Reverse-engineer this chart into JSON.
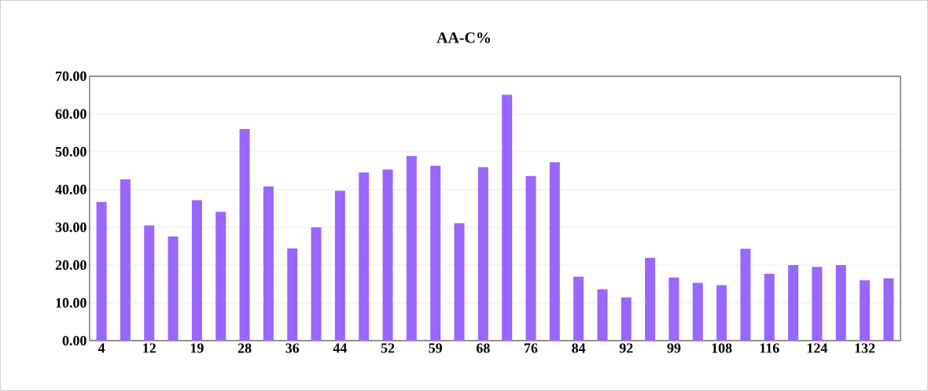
{
  "chart_data": {
    "type": "bar",
    "title": "AA-C%",
    "categories": [
      "4",
      null,
      "12",
      null,
      "19",
      null,
      "28",
      null,
      "36",
      null,
      "44",
      null,
      "52",
      null,
      "59",
      null,
      "68",
      null,
      "76",
      null,
      "84",
      null,
      "92",
      null,
      "99",
      null,
      "108",
      null,
      "116",
      null,
      "124",
      null,
      "132",
      null
    ],
    "values": [
      36.7,
      42.7,
      30.5,
      27.6,
      37.2,
      34.1,
      56.0,
      40.8,
      24.4,
      30.0,
      39.7,
      44.5,
      45.3,
      48.9,
      46.3,
      31.1,
      45.9,
      65.1,
      43.6,
      47.2,
      16.9,
      13.6,
      11.4,
      21.9,
      16.7,
      15.3,
      14.7,
      24.3,
      17.7,
      20.0,
      19.5,
      20.0,
      16.0,
      16.5
    ],
    "color": "#9966ff",
    "ylim": [
      0,
      70
    ],
    "yticks": [
      {
        "value": 0,
        "label": "0.00"
      },
      {
        "value": 10,
        "label": "10.00"
      },
      {
        "value": 20,
        "label": "20.00"
      },
      {
        "value": 30,
        "label": "30.00"
      },
      {
        "value": 40,
        "label": "40.00"
      },
      {
        "value": 50,
        "label": "50.00"
      },
      {
        "value": 60,
        "label": "60.00"
      },
      {
        "value": 70,
        "label": "70.00"
      }
    ],
    "grid": "y"
  }
}
